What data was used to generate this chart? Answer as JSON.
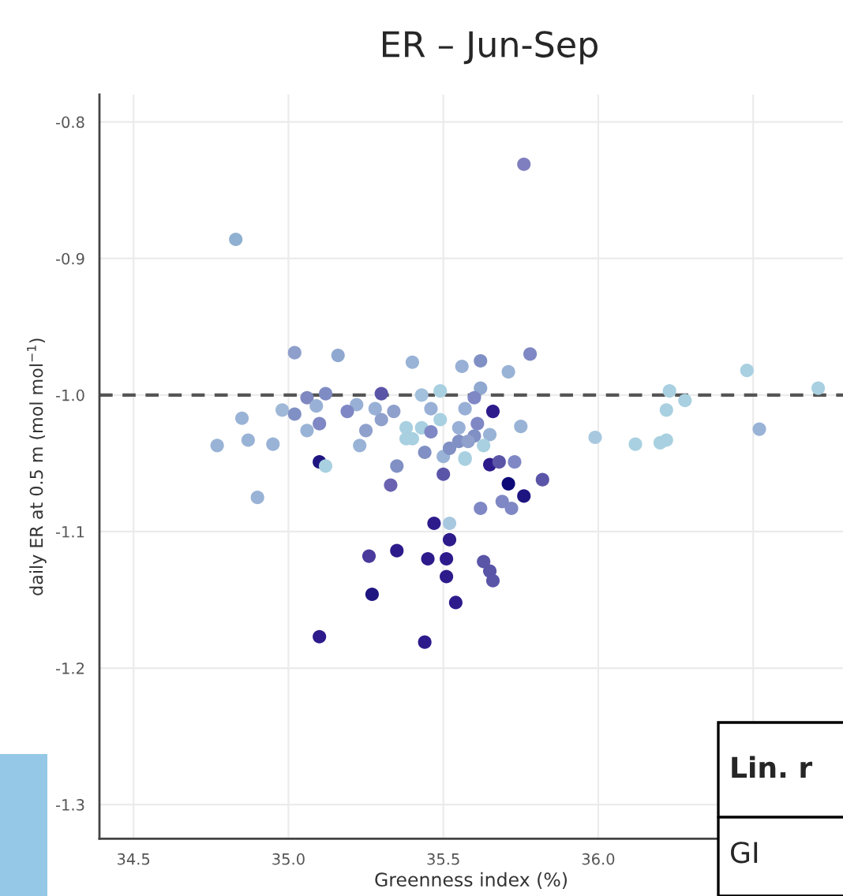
{
  "chart_data": {
    "type": "scatter",
    "title": "ER – Jun-Sep",
    "xlabel": "Greenness index (%)",
    "ylabel": "daily ER at 0.5 m (mol mol$^{−1}$)",
    "xlim": [
      34.39,
      36.79
    ],
    "ylim": [
      -1.325,
      -0.78
    ],
    "xticks": [
      {
        "value": 34.5,
        "label": "34.5"
      },
      {
        "value": 35.0,
        "label": "35.0"
      },
      {
        "value": 35.5,
        "label": "35.5"
      },
      {
        "value": 36.0,
        "label": "36.0"
      },
      {
        "value": 36.5,
        "label": null
      }
    ],
    "yticks": [
      {
        "value": -0.8,
        "label": "-0.8"
      },
      {
        "value": -0.9,
        "label": "-0.9"
      },
      {
        "value": -1.0,
        "label": "-1.0"
      },
      {
        "value": -1.1,
        "label": "-1.1"
      },
      {
        "value": -1.2,
        "label": "-1.2"
      },
      {
        "value": -1.3,
        "label": "-1.3"
      }
    ],
    "grid": true,
    "marker": "circle",
    "ref_lines": [
      {
        "axis": "y",
        "value": -1.0,
        "color": "#555555",
        "line_style": "dashed"
      }
    ],
    "annotations": [
      "Lin. r",
      "GI"
    ],
    "x": [
      34.83,
      35.02,
      35.16,
      35.4,
      35.3,
      35.49,
      35.43,
      35.12,
      35.06,
      35.09,
      35.22,
      34.98,
      35.02,
      35.19,
      35.28,
      35.34,
      35.46,
      34.85,
      35.3,
      35.49,
      35.1,
      35.25,
      35.06,
      35.38,
      35.43,
      35.46,
      34.77,
      34.87,
      34.95,
      35.23,
      35.38,
      35.4,
      35.44,
      35.5,
      35.52,
      35.1,
      35.12,
      35.35,
      35.5,
      35.33,
      34.9,
      35.47,
      35.52,
      35.52,
      35.26,
      35.35,
      35.45,
      35.51,
      35.51,
      35.27,
      35.54,
      35.1,
      35.44,
      35.63,
      35.65,
      35.66,
      35.62,
      35.69,
      35.72,
      35.76,
      35.71,
      35.82,
      35.65,
      35.68,
      35.73,
      35.57,
      35.76,
      35.78,
      35.62,
      35.56,
      35.71,
      35.62,
      35.6,
      35.57,
      35.66,
      35.61,
      35.55,
      35.65,
      35.75,
      35.6,
      35.55,
      35.58,
      35.63,
      35.57,
      35.99,
      36.12,
      36.2,
      36.22,
      36.22,
      36.23,
      36.28,
      36.48,
      36.52,
      36.71
    ],
    "values": [
      -0.886,
      -0.969,
      -0.971,
      -0.976,
      -0.999,
      -0.997,
      -1.0,
      -0.999,
      -1.002,
      -1.008,
      -1.007,
      -1.011,
      -1.014,
      -1.012,
      -1.01,
      -1.012,
      -1.01,
      -1.017,
      -1.018,
      -1.018,
      -1.021,
      -1.026,
      -1.026,
      -1.024,
      -1.024,
      -1.027,
      -1.037,
      -1.033,
      -1.036,
      -1.037,
      -1.032,
      -1.032,
      -1.042,
      -1.045,
      -1.039,
      -1.049,
      -1.052,
      -1.052,
      -1.058,
      -1.066,
      -1.075,
      -1.094,
      -1.094,
      -1.106,
      -1.118,
      -1.114,
      -1.12,
      -1.12,
      -1.133,
      -1.146,
      -1.152,
      -1.177,
      -1.181,
      -1.122,
      -1.129,
      -1.136,
      -1.083,
      -1.078,
      -1.083,
      -1.074,
      -1.065,
      -1.062,
      -1.051,
      -1.049,
      -1.049,
      -1.047,
      -0.831,
      -0.97,
      -0.975,
      -0.979,
      -0.983,
      -0.995,
      -1.002,
      -1.01,
      -1.012,
      -1.021,
      -1.024,
      -1.029,
      -1.023,
      -1.03,
      -1.034,
      -1.034,
      -1.037,
      -1.046,
      -1.031,
      -1.036,
      -1.035,
      -1.033,
      -1.011,
      -0.997,
      -1.004,
      -0.982,
      -1.025,
      -0.995
    ],
    "colors": [
      "#8fb0d0",
      "#8f9fcc",
      "#8fa8d0",
      "#99b3d6",
      "#5b55a8",
      "#a8d0e0",
      "#a3c0dc",
      "#7f8cc4",
      "#7f88c0",
      "#99b0d6",
      "#99b0d6",
      "#9fb8d8",
      "#8090c4",
      "#7f88c4",
      "#99b0d6",
      "#8fa0cc",
      "#99b0d6",
      "#99b3d6",
      "#8fa0cc",
      "#a8d0e0",
      "#7f88c4",
      "#8fa0cc",
      "#99b3d6",
      "#a8d0e0",
      "#a8d0e0",
      "#7f88c4",
      "#99b3d6",
      "#99b3d6",
      "#99b3d6",
      "#99b3d6",
      "#a8d0e0",
      "#a8d0e0",
      "#8090c4",
      "#99b3d6",
      "#8090c4",
      "#1f1580",
      "#a8d0e0",
      "#8090c4",
      "#5b55a8",
      "#6a62b0",
      "#99b3d6",
      "#2d1b8c",
      "#a8c8e0",
      "#2d1b8c",
      "#4a3a9c",
      "#2d1b8c",
      "#2d1b8c",
      "#2d1b8c",
      "#2d1b8c",
      "#1f1580",
      "#2d1b8c",
      "#2d1b8c",
      "#2d1b8c",
      "#5b55a8",
      "#5b55a8",
      "#5b55a8",
      "#7f88c4",
      "#7f88c4",
      "#7f88c4",
      "#1f1580",
      "#0d0a78",
      "#5b55a8",
      "#2d1b8c",
      "#5b55a8",
      "#7f88c4",
      "#a8d0e0",
      "#7f7fbf",
      "#7f88c4",
      "#8090c4",
      "#99b0d6",
      "#99b3d6",
      "#8fa8d0",
      "#7f88c4",
      "#99b0d6",
      "#2d1b8c",
      "#7f88c4",
      "#99b0d6",
      "#99b3d6",
      "#99b3d6",
      "#8090c4",
      "#8090c4",
      "#8fa0cc",
      "#a8d0e0",
      "#a8d0e0",
      "#a8c8e0",
      "#a8d0e0",
      "#a8d0e0",
      "#a8d0e0",
      "#a8d0e0",
      "#a8d0e0",
      "#a8d0e0",
      "#a8d0e0",
      "#99b3d6",
      "#a8d0e0"
    ]
  }
}
